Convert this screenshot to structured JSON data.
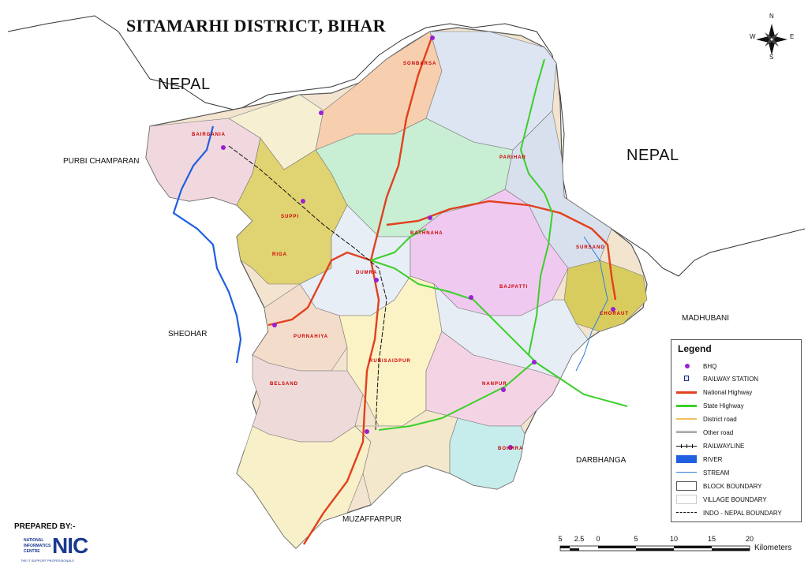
{
  "title": "SITAMARHI DISTRICT, BIHAR",
  "neighbours": {
    "nepal_west": "NEPAL",
    "nepal_east": "NEPAL",
    "purbi_champaran": "PURBI CHAMPARAN",
    "sheohar": "SHEOHAR",
    "madhubani": "MADHUBANI",
    "darbhanga": "DARBHANGA",
    "muzaffarpur": "MUZAFFARPUR"
  },
  "blocks": [
    "SONBARSA",
    "PARIHAR",
    "BAIRGANIA",
    "SURSAND",
    "BATHNAHA",
    "RIGA",
    "SUPPI",
    "DUMRA",
    "BAJPATTI",
    "CHORAUT",
    "PURNAHIYA",
    "RUNISAIDPUR",
    "BELSAND",
    "NANPUR",
    "BOKHRA"
  ],
  "compass": {
    "n": "N",
    "s": "S",
    "e": "E",
    "w": "W"
  },
  "legend": {
    "title": "Legend",
    "items": [
      {
        "label": "BHQ",
        "symbol": "dot",
        "color": "#9b1fd6"
      },
      {
        "label": "RAILWAY STATION",
        "symbol": "station",
        "color": "#1f2f8f"
      },
      {
        "label": "National Highway",
        "symbol": "line",
        "color": "#e2401f"
      },
      {
        "label": "State Highway",
        "symbol": "line",
        "color": "#3ccf2a"
      },
      {
        "label": "District road",
        "symbol": "line",
        "color": "#f0c060"
      },
      {
        "label": "Other road",
        "symbol": "double-line",
        "color": "#888888"
      },
      {
        "label": "RAILWAYLINE",
        "symbol": "rail",
        "color": "#111111"
      },
      {
        "label": "RIVER",
        "symbol": "fill",
        "color": "#1f5fe0"
      },
      {
        "label": "STREAM",
        "symbol": "line",
        "color": "#2f7fe0"
      },
      {
        "label": "BLOCK BOUNDARY",
        "symbol": "box",
        "color": "#555555"
      },
      {
        "label": "VILLAGE BOUNDARY",
        "symbol": "box-light",
        "color": "#cccccc"
      },
      {
        "label": "INDO - NEPAL BOUNDARY",
        "symbol": "dashdot",
        "color": "#111111"
      }
    ]
  },
  "prepared_by": "PREPARED BY:-",
  "nic": {
    "line1": "NATIONAL",
    "line2": "INFORMATICS",
    "line3": "CENTRE",
    "logo": "NIC",
    "tagline": "THE IT SUPPORT PROFESSIONALS"
  },
  "scale": {
    "ticks": [
      "5",
      "2.5",
      "0",
      "5",
      "10",
      "15",
      "20"
    ],
    "unit": "Kilometers"
  },
  "colors": {
    "national_highway": "#e2401f",
    "state_highway": "#3ccf2a",
    "district_road": "#f0c060",
    "river": "#1f5fe0",
    "stream": "#2f7fe0",
    "bhq": "#9b1fd6"
  }
}
